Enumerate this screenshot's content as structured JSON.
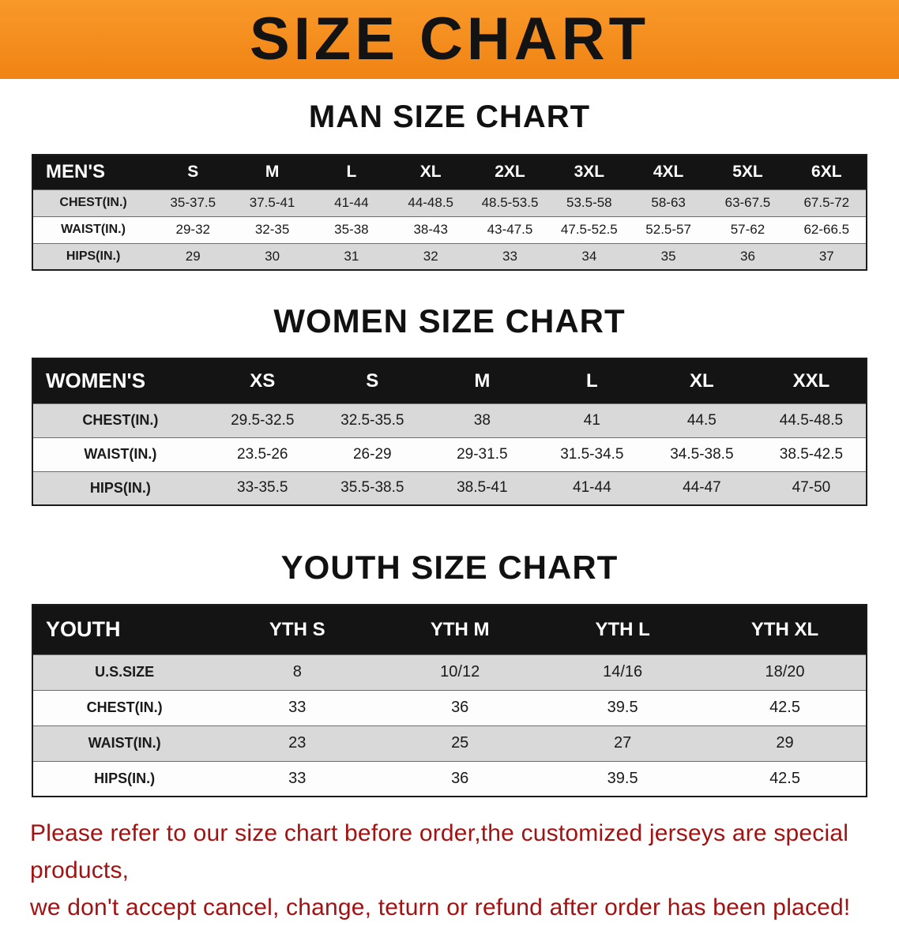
{
  "banner": {
    "title": "SIZE CHART"
  },
  "colors": {
    "banner_bg": "#f6921e",
    "table_header_bg": "#141414",
    "row_alt_bg": "#d9d9d9",
    "footer_text": "#a31212"
  },
  "sections": [
    {
      "id": "men",
      "heading": "MAN SIZE CHART",
      "table": {
        "header": {
          "label": "MEN'S",
          "columns": [
            "S",
            "M",
            "L",
            "XL",
            "2XL",
            "3XL",
            "4XL",
            "5XL",
            "6XL"
          ]
        },
        "rows": [
          {
            "label": "CHEST(IN.)",
            "values": [
              "35-37.5",
              "37.5-41",
              "41-44",
              "44-48.5",
              "48.5-53.5",
              "53.5-58",
              "58-63",
              "63-67.5",
              "67.5-72"
            ]
          },
          {
            "label": "WAIST(IN.)",
            "values": [
              "29-32",
              "32-35",
              "35-38",
              "38-43",
              "43-47.5",
              "47.5-52.5",
              "52.5-57",
              "57-62",
              "62-66.5"
            ]
          },
          {
            "label": "HIPS(IN.)",
            "values": [
              "29",
              "30",
              "31",
              "32",
              "33",
              "34",
              "35",
              "36",
              "37"
            ]
          }
        ]
      }
    },
    {
      "id": "women",
      "heading": "WOMEN SIZE CHART",
      "table": {
        "header": {
          "label": "WOMEN'S",
          "columns": [
            "XS",
            "S",
            "M",
            "L",
            "XL",
            "XXL"
          ]
        },
        "rows": [
          {
            "label": "CHEST(IN.)",
            "values": [
              "29.5-32.5",
              "32.5-35.5",
              "38",
              "41",
              "44.5",
              "44.5-48.5"
            ]
          },
          {
            "label": "WAIST(IN.)",
            "values": [
              "23.5-26",
              "26-29",
              "29-31.5",
              "31.5-34.5",
              "34.5-38.5",
              "38.5-42.5"
            ]
          },
          {
            "label": "HIPS(IN.)",
            "values": [
              "33-35.5",
              "35.5-38.5",
              "38.5-41",
              "41-44",
              "44-47",
              "47-50"
            ]
          }
        ]
      }
    },
    {
      "id": "youth",
      "heading": "YOUTH SIZE CHART",
      "table": {
        "header": {
          "label": "YOUTH",
          "columns": [
            "YTH S",
            "YTH M",
            "YTH L",
            "YTH XL"
          ]
        },
        "rows": [
          {
            "label": "U.S.SIZE",
            "values": [
              "8",
              "10/12",
              "14/16",
              "18/20"
            ]
          },
          {
            "label": "CHEST(IN.)",
            "values": [
              "33",
              "36",
              "39.5",
              "42.5"
            ]
          },
          {
            "label": "WAIST(IN.)",
            "values": [
              "23",
              "25",
              "27",
              "29"
            ]
          },
          {
            "label": "HIPS(IN.)",
            "values": [
              "33",
              "36",
              "39.5",
              "42.5"
            ]
          }
        ]
      }
    }
  ],
  "footer": {
    "line1": "Please refer to our size chart before order,the customized jerseys are special products,",
    "line2": "we don't accept cancel, change, teturn or refund after order has been placed!"
  }
}
